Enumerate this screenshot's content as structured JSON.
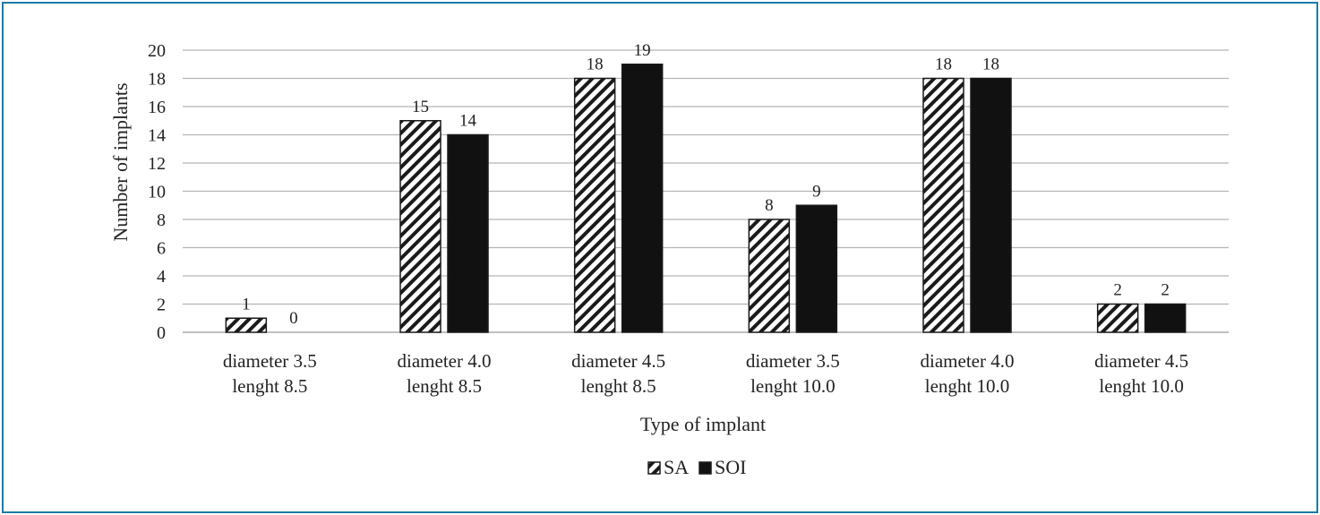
{
  "chart_data": {
    "type": "bar",
    "categories": [
      [
        "diameter 3.5",
        "lenght 8.5"
      ],
      [
        "diameter 4.0",
        "lenght 8.5"
      ],
      [
        "diameter 4.5",
        "lenght 8.5"
      ],
      [
        "diameter 3.5",
        "lenght 10.0"
      ],
      [
        "diameter 4.0",
        "lenght 10.0"
      ],
      [
        "diameter 4.5",
        "lenght 10.0"
      ]
    ],
    "series": [
      {
        "name": "SA",
        "values": [
          1,
          15,
          18,
          8,
          18,
          2
        ],
        "pattern": "hatched",
        "color": "#1a1a1a"
      },
      {
        "name": "SOI",
        "values": [
          0,
          14,
          19,
          9,
          18,
          2
        ],
        "pattern": "solid",
        "color": "#111111"
      }
    ],
    "xlabel": "Type of implant",
    "ylabel": "Number of implants",
    "ylim": [
      0,
      20
    ],
    "yticks": [
      0,
      2,
      4,
      6,
      8,
      10,
      12,
      14,
      16,
      18,
      20
    ],
    "grid": true,
    "legend_position": "bottom",
    "data_labels": true,
    "frame_color": "#1e7aa7"
  }
}
